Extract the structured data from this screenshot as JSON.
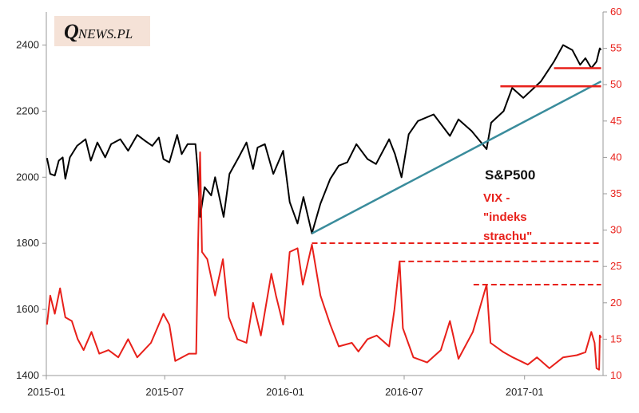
{
  "logo": {
    "initial": "Q",
    "rest": "NEWS.PL"
  },
  "legend": {
    "sp500_label": "S&P500",
    "vix_label": "VIX - \"indeks strachu\""
  },
  "colors": {
    "sp500": "#000000",
    "vix": "#e8201a",
    "trendline": "#3a8c9c",
    "axis_left": "#000000",
    "axis_right": "#e8201a"
  },
  "chart_data": {
    "type": "line",
    "title": "",
    "x_ticks": [
      "2015-01",
      "2015-07",
      "2016-01",
      "2016-07",
      "2017-01"
    ],
    "x_range": [
      "2015-01-02",
      "2017-04-28"
    ],
    "left_axis": {
      "series": "S&P500",
      "ylim": [
        1400,
        2500
      ],
      "ticks": [
        1400,
        1600,
        1800,
        2000,
        2200,
        2400
      ]
    },
    "right_axis": {
      "series": "VIX",
      "ylim": [
        10,
        60
      ],
      "ticks": [
        10,
        15,
        20,
        25,
        30,
        35,
        40,
        45,
        50,
        55,
        60
      ]
    },
    "series": [
      {
        "name": "S&P500",
        "axis": "left",
        "points": [
          [
            "2015-01-02",
            2058
          ],
          [
            "2015-01-07",
            2010
          ],
          [
            "2015-01-14",
            2005
          ],
          [
            "2015-01-20",
            2050
          ],
          [
            "2015-01-26",
            2060
          ],
          [
            "2015-01-30",
            1995
          ],
          [
            "2015-02-06",
            2060
          ],
          [
            "2015-02-17",
            2095
          ],
          [
            "2015-03-02",
            2115
          ],
          [
            "2015-03-10",
            2050
          ],
          [
            "2015-03-20",
            2105
          ],
          [
            "2015-04-01",
            2060
          ],
          [
            "2015-04-10",
            2100
          ],
          [
            "2015-04-24",
            2115
          ],
          [
            "2015-05-06",
            2080
          ],
          [
            "2015-05-20",
            2128
          ],
          [
            "2015-06-01",
            2110
          ],
          [
            "2015-06-12",
            2095
          ],
          [
            "2015-06-22",
            2120
          ],
          [
            "2015-06-29",
            2055
          ],
          [
            "2015-07-08",
            2045
          ],
          [
            "2015-07-20",
            2128
          ],
          [
            "2015-07-27",
            2070
          ],
          [
            "2015-08-05",
            2100
          ],
          [
            "2015-08-17",
            2100
          ],
          [
            "2015-08-20",
            2030
          ],
          [
            "2015-08-24",
            1880
          ],
          [
            "2015-08-31",
            1970
          ],
          [
            "2015-09-10",
            1945
          ],
          [
            "2015-09-16",
            2000
          ],
          [
            "2015-09-29",
            1880
          ],
          [
            "2015-10-08",
            2010
          ],
          [
            "2015-10-22",
            2060
          ],
          [
            "2015-11-03",
            2105
          ],
          [
            "2015-11-13",
            2025
          ],
          [
            "2015-11-20",
            2090
          ],
          [
            "2015-12-01",
            2100
          ],
          [
            "2015-12-14",
            2010
          ],
          [
            "2015-12-29",
            2080
          ],
          [
            "2016-01-08",
            1925
          ],
          [
            "2016-01-20",
            1860
          ],
          [
            "2016-01-29",
            1940
          ],
          [
            "2016-02-11",
            1830
          ],
          [
            "2016-02-24",
            1920
          ],
          [
            "2016-03-10",
            1995
          ],
          [
            "2016-03-23",
            2035
          ],
          [
            "2016-04-05",
            2045
          ],
          [
            "2016-04-19",
            2100
          ],
          [
            "2016-05-06",
            2055
          ],
          [
            "2016-05-19",
            2040
          ],
          [
            "2016-06-08",
            2115
          ],
          [
            "2016-06-17",
            2070
          ],
          [
            "2016-06-27",
            2000
          ],
          [
            "2016-07-08",
            2130
          ],
          [
            "2016-07-22",
            2170
          ],
          [
            "2016-08-15",
            2190
          ],
          [
            "2016-09-09",
            2125
          ],
          [
            "2016-09-22",
            2175
          ],
          [
            "2016-10-12",
            2140
          ],
          [
            "2016-11-04",
            2085
          ],
          [
            "2016-11-11",
            2165
          ],
          [
            "2016-11-30",
            2200
          ],
          [
            "2016-12-13",
            2270
          ],
          [
            "2016-12-30",
            2240
          ],
          [
            "2017-01-26",
            2290
          ],
          [
            "2017-02-15",
            2350
          ],
          [
            "2017-03-01",
            2400
          ],
          [
            "2017-03-15",
            2385
          ],
          [
            "2017-03-27",
            2340
          ],
          [
            "2017-04-04",
            2360
          ],
          [
            "2017-04-13",
            2330
          ],
          [
            "2017-04-21",
            2350
          ],
          [
            "2017-04-26",
            2390
          ],
          [
            "2017-04-28",
            2385
          ]
        ]
      },
      {
        "name": "VIX",
        "axis": "right",
        "points": [
          [
            "2015-01-02",
            17
          ],
          [
            "2015-01-07",
            21
          ],
          [
            "2015-01-14",
            18.5
          ],
          [
            "2015-01-22",
            22
          ],
          [
            "2015-01-30",
            18
          ],
          [
            "2015-02-09",
            17.5
          ],
          [
            "2015-02-18",
            15
          ],
          [
            "2015-02-27",
            13.5
          ],
          [
            "2015-03-11",
            16
          ],
          [
            "2015-03-23",
            13
          ],
          [
            "2015-04-06",
            13.5
          ],
          [
            "2015-04-21",
            12.5
          ],
          [
            "2015-05-06",
            15
          ],
          [
            "2015-05-20",
            12.5
          ],
          [
            "2015-06-10",
            14.5
          ],
          [
            "2015-06-29",
            18.5
          ],
          [
            "2015-07-08",
            17
          ],
          [
            "2015-07-17",
            12
          ],
          [
            "2015-08-07",
            13
          ],
          [
            "2015-08-18",
            13
          ],
          [
            "2015-08-21",
            28
          ],
          [
            "2015-08-24",
            40.7
          ],
          [
            "2015-08-27",
            27
          ],
          [
            "2015-09-04",
            26
          ],
          [
            "2015-09-16",
            21
          ],
          [
            "2015-09-28",
            26
          ],
          [
            "2015-10-07",
            18
          ],
          [
            "2015-10-20",
            15
          ],
          [
            "2015-11-03",
            14.5
          ],
          [
            "2015-11-13",
            20
          ],
          [
            "2015-11-25",
            15.5
          ],
          [
            "2015-12-11",
            24
          ],
          [
            "2015-12-18",
            21
          ],
          [
            "2015-12-29",
            17
          ],
          [
            "2016-01-08",
            27
          ],
          [
            "2016-01-20",
            27.5
          ],
          [
            "2016-01-28",
            22.5
          ],
          [
            "2016-02-11",
            28
          ],
          [
            "2016-02-24",
            21
          ],
          [
            "2016-03-10",
            17
          ],
          [
            "2016-03-23",
            14
          ],
          [
            "2016-04-12",
            14.5
          ],
          [
            "2016-04-22",
            13.3
          ],
          [
            "2016-05-06",
            15
          ],
          [
            "2016-05-20",
            15.5
          ],
          [
            "2016-06-08",
            14
          ],
          [
            "2016-06-16",
            19
          ],
          [
            "2016-06-24",
            25.7
          ],
          [
            "2016-06-29",
            16.5
          ],
          [
            "2016-07-15",
            12.5
          ],
          [
            "2016-08-05",
            11.8
          ],
          [
            "2016-08-26",
            13.5
          ],
          [
            "2016-09-09",
            17.5
          ],
          [
            "2016-09-22",
            12.3
          ],
          [
            "2016-10-14",
            16
          ],
          [
            "2016-11-04",
            22.5
          ],
          [
            "2016-11-10",
            14.5
          ],
          [
            "2016-11-30",
            13.2
          ],
          [
            "2016-12-14",
            12.5
          ],
          [
            "2017-01-06",
            11.5
          ],
          [
            "2017-01-20",
            12.5
          ],
          [
            "2017-02-08",
            11
          ],
          [
            "2017-03-01",
            12.5
          ],
          [
            "2017-03-22",
            12.8
          ],
          [
            "2017-04-04",
            13.2
          ],
          [
            "2017-04-13",
            16
          ],
          [
            "2017-04-18",
            14.5
          ],
          [
            "2017-04-21",
            11
          ],
          [
            "2017-04-25",
            10.8
          ],
          [
            "2017-04-26",
            15.5
          ],
          [
            "2017-04-28",
            15.2
          ]
        ]
      }
    ],
    "annotations": [
      {
        "type": "trendline",
        "axis": "left",
        "from": [
          "2016-02-11",
          1830
        ],
        "to": [
          "2017-04-28",
          2290
        ]
      },
      {
        "type": "hline",
        "axis": "left",
        "y": 2275,
        "from": "2016-11-25",
        "to": "2017-04-28",
        "style": "solid"
      },
      {
        "type": "hline",
        "axis": "left",
        "y": 2330,
        "from": "2017-02-15",
        "to": "2017-04-28",
        "style": "solid"
      },
      {
        "type": "hline",
        "axis": "right",
        "y": 28.2,
        "from": "2016-02-11",
        "to": "2017-04-28",
        "style": "dashed"
      },
      {
        "type": "hline",
        "axis": "right",
        "y": 25.7,
        "from": "2016-06-24",
        "to": "2017-04-28",
        "style": "dashed"
      },
      {
        "type": "hline",
        "axis": "right",
        "y": 22.5,
        "from": "2016-10-15",
        "to": "2017-04-28",
        "style": "dashed"
      }
    ]
  }
}
